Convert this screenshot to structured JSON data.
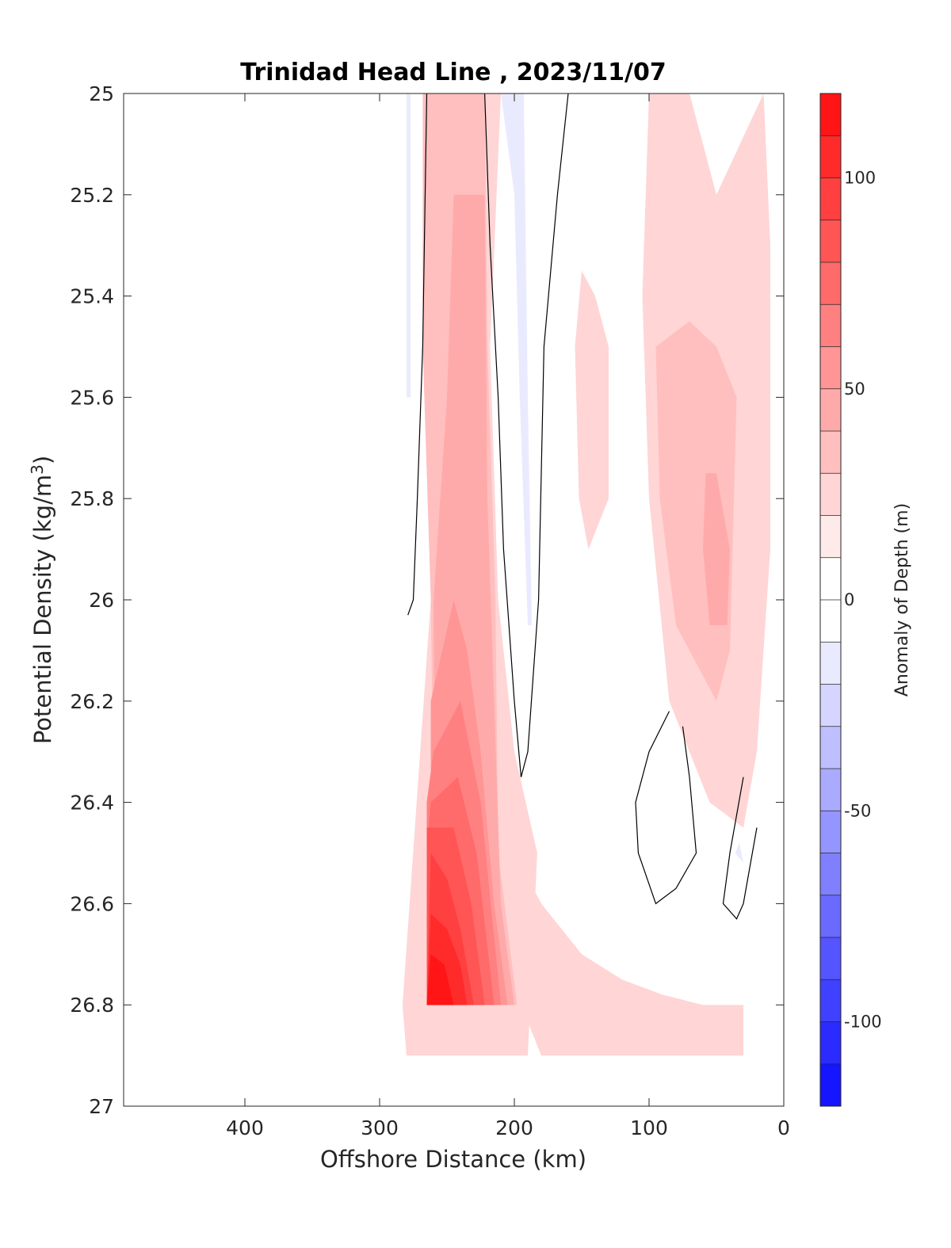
{
  "chart_data": {
    "type": "heatmap",
    "subtype": "filled-contour",
    "title": "Trinidad Head Line , 2023/11/07",
    "xlabel": "Offshore Distance (km)",
    "ylabel": "Potential Density (kg/m",
    "ylabel_superscript": "3",
    "ylabel_suffix": ")",
    "x_reversed": true,
    "y_reversed": true,
    "xlim": [
      0,
      490
    ],
    "ylim": [
      25,
      27
    ],
    "xticks": [
      400,
      300,
      200,
      100,
      0
    ],
    "xtick_labels": [
      "400",
      "300",
      "200",
      "100",
      "0"
    ],
    "yticks": [
      25,
      25.2,
      25.4,
      25.6,
      25.8,
      26,
      26.2,
      26.4,
      26.6,
      26.8,
      27
    ],
    "ytick_labels": [
      "25",
      "25.2",
      "25.4",
      "25.6",
      "25.8",
      "26",
      "26.2",
      "26.4",
      "26.6",
      "26.8",
      "27"
    ],
    "colorbar": {
      "label": "Anomaly of Depth (m)",
      "range": [
        -120,
        120
      ],
      "ticks": [
        100,
        50,
        0,
        -50,
        -100
      ],
      "tick_labels": [
        "100",
        "50",
        "0",
        "-50",
        "-100"
      ],
      "level_step": 10,
      "max_color": "#ff0000",
      "min_color": "#0000ff",
      "mid_color": "#ffffff"
    },
    "regions": [
      {
        "level": 20,
        "points": [
          [
            285,
            25
          ],
          [
            262,
            25
          ],
          [
            262,
            26
          ],
          [
            283,
            26.8
          ],
          [
            280,
            26.9
          ],
          [
            190,
            26.9
          ],
          [
            183,
            26.5
          ],
          [
            200,
            26.3
          ],
          [
            212,
            26
          ],
          [
            218,
            25.5
          ],
          [
            210,
            25
          ]
        ]
      },
      {
        "level": 30,
        "points": [
          [
            268,
            25
          ],
          [
            222,
            25
          ],
          [
            220,
            25.5
          ],
          [
            214,
            26
          ],
          [
            212,
            26.5
          ],
          [
            198,
            26.8
          ],
          [
            258,
            26.8
          ],
          [
            262,
            26
          ],
          [
            268,
            25.5
          ]
        ]
      },
      {
        "level": 40,
        "points": [
          [
            245,
            25.2
          ],
          [
            222,
            25.2
          ],
          [
            220,
            25.8
          ],
          [
            215,
            26.2
          ],
          [
            210,
            26.6
          ],
          [
            200,
            26.8
          ],
          [
            258,
            26.8
          ],
          [
            260,
            26
          ],
          [
            250,
            25.6
          ]
        ]
      },
      {
        "level": 50,
        "points": [
          [
            245,
            26
          ],
          [
            235,
            26.1
          ],
          [
            225,
            26.3
          ],
          [
            215,
            26.6
          ],
          [
            205,
            26.8
          ],
          [
            262,
            26.8
          ],
          [
            262,
            26.2
          ]
        ]
      },
      {
        "level": 60,
        "points": [
          [
            260,
            26.3
          ],
          [
            240,
            26.2
          ],
          [
            225,
            26.4
          ],
          [
            210,
            26.8
          ],
          [
            265,
            26.8
          ],
          [
            265,
            26.4
          ]
        ]
      },
      {
        "level": 70,
        "points": [
          [
            262,
            26.4
          ],
          [
            242,
            26.35
          ],
          [
            228,
            26.5
          ],
          [
            215,
            26.8
          ],
          [
            265,
            26.8
          ],
          [
            265,
            26.5
          ]
        ]
      },
      {
        "level": 80,
        "points": [
          [
            265,
            26.45
          ],
          [
            245,
            26.45
          ],
          [
            232,
            26.6
          ],
          [
            222,
            26.8
          ],
          [
            265,
            26.8
          ]
        ]
      },
      {
        "level": 90,
        "points": [
          [
            262,
            26.5
          ],
          [
            250,
            26.55
          ],
          [
            240,
            26.65
          ],
          [
            230,
            26.8
          ],
          [
            265,
            26.8
          ]
        ]
      },
      {
        "level": 100,
        "points": [
          [
            262,
            26.62
          ],
          [
            250,
            26.65
          ],
          [
            240,
            26.72
          ],
          [
            235,
            26.8
          ],
          [
            265,
            26.8
          ]
        ]
      },
      {
        "level": 110,
        "points": [
          [
            262,
            26.7
          ],
          [
            252,
            26.72
          ],
          [
            245,
            26.8
          ],
          [
            265,
            26.8
          ]
        ]
      },
      {
        "level": 20,
        "points": [
          [
            100,
            25
          ],
          [
            70,
            25
          ],
          [
            50,
            25.2
          ],
          [
            15,
            25
          ],
          [
            10,
            25.3
          ],
          [
            10,
            25.9
          ],
          [
            20,
            26.3
          ],
          [
            30,
            26.45
          ],
          [
            55,
            26.4
          ],
          [
            85,
            26.2
          ],
          [
            100,
            25.8
          ],
          [
            105,
            25.4
          ]
        ]
      },
      {
        "level": 20,
        "points": [
          [
            150,
            25.35
          ],
          [
            155,
            25.5
          ],
          [
            152,
            25.8
          ],
          [
            145,
            25.9
          ],
          [
            130,
            25.8
          ],
          [
            130,
            25.5
          ],
          [
            140,
            25.4
          ]
        ]
      },
      {
        "level": 20,
        "points": [
          [
            200,
            26.5
          ],
          [
            180,
            26.6
          ],
          [
            150,
            26.7
          ],
          [
            120,
            26.75
          ],
          [
            90,
            26.78
          ],
          [
            60,
            26.8
          ],
          [
            30,
            26.8
          ],
          [
            30,
            26.9
          ],
          [
            100,
            26.9
          ],
          [
            180,
            26.9
          ],
          [
            195,
            26.8
          ]
        ]
      },
      {
        "level": 30,
        "points": [
          [
            95,
            25.5
          ],
          [
            70,
            25.45
          ],
          [
            50,
            25.5
          ],
          [
            35,
            25.6
          ],
          [
            40,
            26.1
          ],
          [
            50,
            26.2
          ],
          [
            80,
            26.05
          ],
          [
            92,
            25.8
          ]
        ]
      },
      {
        "level": 40,
        "points": [
          [
            50,
            25.75
          ],
          [
            40,
            25.9
          ],
          [
            42,
            26.05
          ],
          [
            55,
            26.05
          ],
          [
            60,
            25.9
          ],
          [
            58,
            25.75
          ]
        ]
      },
      {
        "level": -10,
        "points": [
          [
            215,
            25
          ],
          [
            193,
            25
          ],
          [
            190,
            25.6
          ],
          [
            187,
            26.05
          ],
          [
            190,
            26.05
          ],
          [
            196,
            25.6
          ],
          [
            200,
            25.2
          ],
          [
            210,
            25
          ]
        ]
      },
      {
        "level": -10,
        "points": [
          [
            280,
            25
          ],
          [
            277,
            25
          ],
          [
            277,
            25.6
          ],
          [
            280,
            25.6
          ]
        ]
      },
      {
        "level": -10,
        "points": [
          [
            36,
            26.5
          ],
          [
            30,
            26.52
          ],
          [
            33,
            26.48
          ]
        ]
      }
    ],
    "contours": [
      {
        "points": [
          [
            265,
            25
          ],
          [
            268,
            25.5
          ],
          [
            272,
            25.8
          ],
          [
            275,
            26
          ],
          [
            279,
            26.03
          ]
        ]
      },
      {
        "points": [
          [
            222,
            25
          ],
          [
            218,
            25.3
          ],
          [
            212,
            25.6
          ],
          [
            208,
            25.9
          ],
          [
            200,
            26.2
          ],
          [
            195,
            26.35
          ],
          [
            190,
            26.3
          ],
          [
            182,
            26.0
          ],
          [
            178,
            25.5
          ],
          [
            168,
            25.2
          ],
          [
            160,
            25
          ]
        ]
      },
      {
        "points": [
          [
            85,
            26.22
          ],
          [
            100,
            26.3
          ],
          [
            110,
            26.4
          ],
          [
            108,
            26.5
          ],
          [
            95,
            26.6
          ],
          [
            80,
            26.57
          ],
          [
            65,
            26.5
          ],
          [
            70,
            26.35
          ],
          [
            75,
            26.25
          ]
        ]
      },
      {
        "points": [
          [
            30,
            26.35
          ],
          [
            40,
            26.5
          ],
          [
            45,
            26.6
          ],
          [
            35,
            26.63
          ],
          [
            30,
            26.6
          ],
          [
            20,
            26.45
          ]
        ]
      }
    ]
  }
}
